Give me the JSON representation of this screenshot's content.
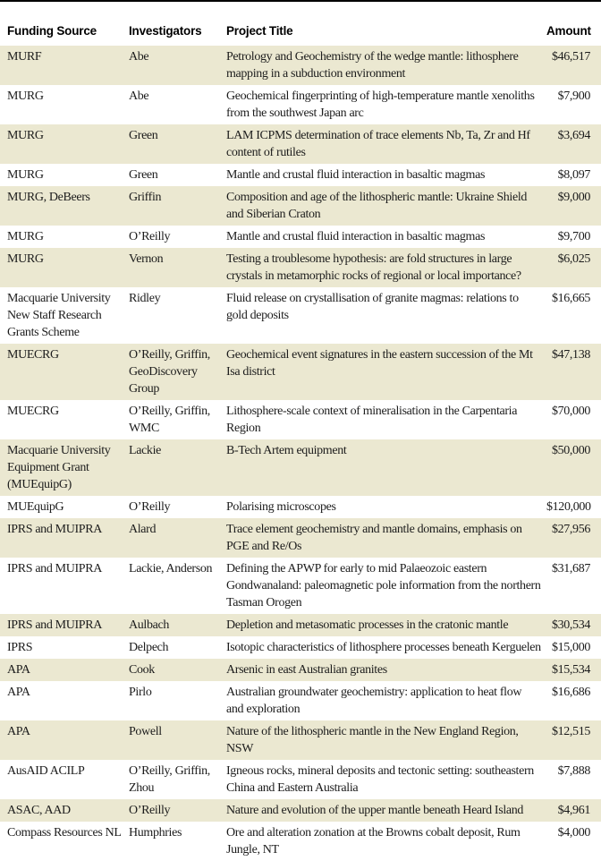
{
  "colors": {
    "row_shaded": "#ebe8d1",
    "row_plain": "#ffffff",
    "top_rule": "#000000",
    "text": "#1c1c1c"
  },
  "table": {
    "columns": [
      "Funding Source",
      "Investigators",
      "Project Title",
      "Amount"
    ],
    "rows": [
      {
        "funding_source": "MURF",
        "investigators": "Abe",
        "project_title": "Petrology and Geochemistry of the wedge mantle: lithosphere mapping in a subduction environment",
        "amount": "$46,517"
      },
      {
        "funding_source": "MURG",
        "investigators": "Abe",
        "project_title": "Geochemical fingerprinting of high-temperature mantle xenoliths from the southwest Japan arc",
        "amount": "$7,900"
      },
      {
        "funding_source": "MURG",
        "investigators": "Green",
        "project_title": "LAM ICPMS determination of trace elements Nb, Ta, Zr and Hf content of rutiles",
        "amount": "$3,694"
      },
      {
        "funding_source": "MURG",
        "investigators": "Green",
        "project_title": "Mantle and crustal fluid interaction in basaltic magmas",
        "amount": "$8,097"
      },
      {
        "funding_source": "MURG, DeBeers",
        "investigators": "Griffin",
        "project_title": "Composition and age of the lithospheric mantle: Ukraine Shield and Siberian Craton",
        "amount": "$9,000"
      },
      {
        "funding_source": "MURG",
        "investigators": "O’Reilly",
        "project_title": "Mantle and crustal fluid interaction in basaltic magmas",
        "amount": "$9,700"
      },
      {
        "funding_source": "MURG",
        "investigators": "Vernon",
        "project_title": "Testing a troublesome hypothesis: are fold structures in large crystals in metamorphic rocks of regional or local importance?",
        "amount": "$6,025"
      },
      {
        "funding_source": "Macquarie University New Staff Research Grants Scheme",
        "investigators": "Ridley",
        "project_title": "Fluid release on crystallisation of granite magmas: relations to gold deposits",
        "amount": "$16,665"
      },
      {
        "funding_source": "MUECRG",
        "investigators": "O’Reilly, Griffin, GeoDiscovery Group",
        "project_title": "Geochemical event signatures in the eastern succession of the Mt Isa district",
        "amount": "$47,138"
      },
      {
        "funding_source": "MUECRG",
        "investigators": "O’Reilly, Griffin, WMC",
        "project_title": "Lithosphere-scale context of mineralisation in the Carpentaria Region",
        "amount": "$70,000"
      },
      {
        "funding_source": "Macquarie University Equipment Grant (MUEquipG)",
        "investigators": "Lackie",
        "project_title": "B-Tech Artem equipment",
        "amount": "$50,000"
      },
      {
        "funding_source": "MUEquipG",
        "investigators": "O’Reilly",
        "project_title": "Polarising microscopes",
        "amount": "$120,000"
      },
      {
        "funding_source": "IPRS and MUIPRA",
        "investigators": "Alard",
        "project_title": "Trace element geochemistry and mantle domains, emphasis on PGE and Re/Os",
        "amount": "$27,956"
      },
      {
        "funding_source": "IPRS and MUIPRA",
        "investigators": "Lackie, Anderson",
        "project_title": "Defining the APWP for early to mid Palaeozoic eastern Gondwanaland: paleomagnetic pole information from the northern Tasman Orogen",
        "amount": "$31,687"
      },
      {
        "funding_source": "IPRS and MUIPRA",
        "investigators": "Aulbach",
        "project_title": "Depletion and metasomatic processes in the cratonic mantle",
        "amount": "$30,534"
      },
      {
        "funding_source": "IPRS",
        "investigators": "Delpech",
        "project_title": "Isotopic characteristics of lithosphere processes beneath Kerguelen",
        "amount": "$15,000"
      },
      {
        "funding_source": "APA",
        "investigators": "Cook",
        "project_title": "Arsenic in east Australian granites",
        "amount": "$15,534"
      },
      {
        "funding_source": "APA",
        "investigators": "Pirlo",
        "project_title": "Australian groundwater geochemistry: application to heat flow and exploration",
        "amount": "$16,686"
      },
      {
        "funding_source": "APA",
        "investigators": "Powell",
        "project_title": "Nature of the lithospheric mantle in the New England Region, NSW",
        "amount": "$12,515"
      },
      {
        "funding_source": "AusAID ACILP",
        "investigators": "O’Reilly, Griffin, Zhou",
        "project_title": "Igneous rocks, mineral deposits and tectonic setting: southeastern China and Eastern Australia",
        "amount": "$7,888"
      },
      {
        "funding_source": "ASAC, AAD",
        "investigators": "O’Reilly",
        "project_title": "Nature and evolution of the upper mantle beneath Heard Island",
        "amount": "$4,961"
      },
      {
        "funding_source": "Compass Resources NL",
        "investigators": "Humphries",
        "project_title": "Ore and alteration zonation at the Browns cobalt deposit, Rum Jungle, NT",
        "amount": "$4,000"
      }
    ]
  }
}
